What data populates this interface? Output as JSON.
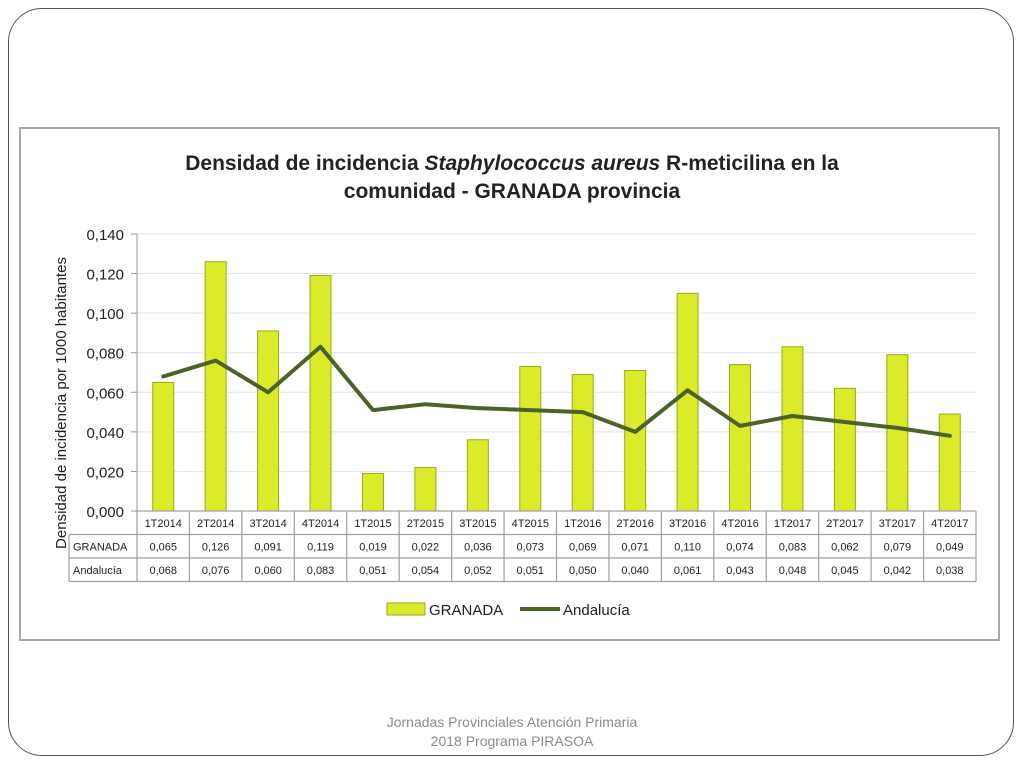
{
  "footer": {
    "line1": "Jornadas Provinciales Atención Primaria",
    "line2": "2018  Programa PIRASOA"
  },
  "colors": {
    "bar_fill": "#dbeb2a",
    "bar_stroke": "#9aaa1a",
    "line": "#4d6228",
    "grid": "#e3e3e3",
    "table_border": "#a0a0a0"
  },
  "chart_data": {
    "type": "bar",
    "title_parts": [
      "Densidad de incidencia ",
      "Staphylococcus aureus",
      " R-meticilina en la",
      "comunidad - GRANADA provincia"
    ],
    "ylabel": "Densidad de incidencia por 1000 habitantes",
    "xlabel": "",
    "ylim": [
      0,
      0.14
    ],
    "yticks": [
      "0,000",
      "0,020",
      "0,040",
      "0,060",
      "0,080",
      "0,100",
      "0,120",
      "0,140"
    ],
    "grid": true,
    "legend_position": "bottom",
    "categories": [
      "1T2014",
      "2T2014",
      "3T2014",
      "4T2014",
      "1T2015",
      "2T2015",
      "3T2015",
      "4T2015",
      "1T2016",
      "2T2016",
      "3T2016",
      "4T2016",
      "1T2017",
      "2T2017",
      "3T2017",
      "4T2017"
    ],
    "series": [
      {
        "name": "GRANADA",
        "kind": "bar",
        "values": [
          0.065,
          0.126,
          0.091,
          0.119,
          0.019,
          0.022,
          0.036,
          0.073,
          0.069,
          0.071,
          0.11,
          0.074,
          0.083,
          0.062,
          0.079,
          0.049
        ],
        "labels": [
          "0,065",
          "0,126",
          "0,091",
          "0,119",
          "0,019",
          "0,022",
          "0,036",
          "0,073",
          "0,069",
          "0,071",
          "0,110",
          "0,074",
          "0,083",
          "0,062",
          "0,079",
          "0,049"
        ]
      },
      {
        "name": "Andalucía",
        "kind": "line",
        "values": [
          0.068,
          0.076,
          0.06,
          0.083,
          0.051,
          0.054,
          0.052,
          0.051,
          0.05,
          0.04,
          0.061,
          0.043,
          0.048,
          0.045,
          0.042,
          0.038
        ],
        "labels": [
          "0,068",
          "0,076",
          "0,060",
          "0,083",
          "0,051",
          "0,054",
          "0,052",
          "0,051",
          "0,050",
          "0,040",
          "0,061",
          "0,043",
          "0,048",
          "0,045",
          "0,042",
          "0,038"
        ]
      }
    ]
  }
}
